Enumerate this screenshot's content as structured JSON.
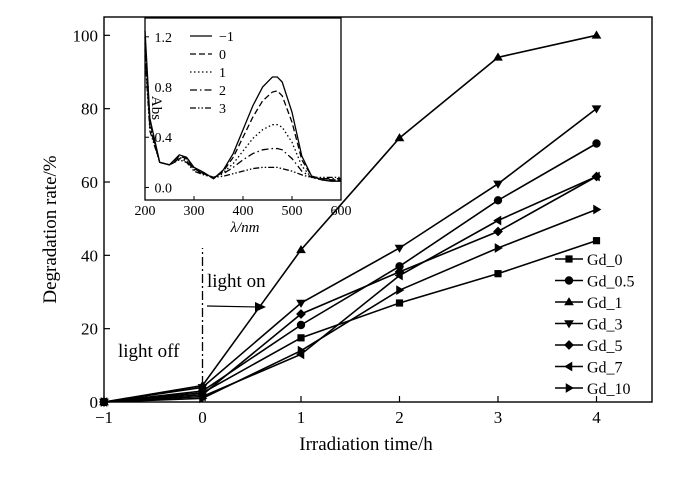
{
  "chart_data": [
    {
      "type": "line",
      "title": "",
      "xlabel": "Irradiation time/h",
      "ylabel": "Degradation rate/%",
      "xlim": [
        -1,
        4.5
      ],
      "ylim": [
        0,
        105
      ],
      "xticks": [
        -1,
        0,
        1,
        2,
        3,
        4
      ],
      "yticks": [
        0,
        20,
        40,
        60,
        80,
        100
      ],
      "grid": false,
      "legend_position": "right",
      "annotations": {
        "light_off": "light off",
        "light_on": "light on"
      },
      "x": [
        -1,
        0,
        1,
        2,
        3,
        4
      ],
      "series": [
        {
          "name": "Gd_0",
          "marker": "square",
          "values": [
            0,
            2.5,
            17.5,
            27,
            35,
            44
          ]
        },
        {
          "name": "Gd_0.5",
          "marker": "circle",
          "values": [
            0,
            3,
            21,
            37,
            55,
            70.5
          ]
        },
        {
          "name": "Gd_1",
          "marker": "triangle-up",
          "values": [
            0,
            4.5,
            41.5,
            72,
            94,
            100
          ]
        },
        {
          "name": "Gd_3",
          "marker": "triangle-down",
          "values": [
            0,
            4,
            27,
            42,
            59.5,
            80
          ]
        },
        {
          "name": "Gd_5",
          "marker": "diamond",
          "values": [
            0,
            2,
            24,
            35.5,
            46.5,
            61.5
          ]
        },
        {
          "name": "Gd_7",
          "marker": "triangle-left",
          "values": [
            0,
            1.5,
            13,
            34.5,
            49.5,
            61.5
          ]
        },
        {
          "name": "Gd_10",
          "marker": "triangle-right",
          "values": [
            0,
            1,
            14,
            30.5,
            42,
            52.5
          ]
        }
      ]
    },
    {
      "type": "line",
      "title": "",
      "xlabel": "λ/nm",
      "ylabel": "Abs",
      "xlim": [
        200,
        600
      ],
      "ylim": [
        -0.1,
        1.35
      ],
      "xticks": [
        200,
        300,
        400,
        500,
        600
      ],
      "yticks": [
        0.0,
        0.4,
        0.8,
        1.2
      ],
      "ytick_labels": [
        "0.0",
        "0.4",
        "0.8",
        "1.2"
      ],
      "grid": false,
      "legend_position": "top-left",
      "series": [
        {
          "name": "−1",
          "style": "solid",
          "x": [
            200,
            210,
            230,
            250,
            270,
            285,
            300,
            320,
            340,
            360,
            380,
            400,
            420,
            440,
            460,
            470,
            480,
            500,
            520,
            540,
            560,
            580,
            600
          ],
          "y": [
            1.25,
            0.55,
            0.2,
            0.18,
            0.26,
            0.24,
            0.16,
            0.12,
            0.07,
            0.14,
            0.27,
            0.46,
            0.65,
            0.8,
            0.88,
            0.88,
            0.84,
            0.6,
            0.25,
            0.09,
            0.06,
            0.05,
            0.05
          ]
        },
        {
          "name": "0",
          "style": "dashed",
          "x": [
            200,
            210,
            230,
            250,
            270,
            285,
            300,
            320,
            340,
            360,
            380,
            400,
            420,
            440,
            460,
            470,
            480,
            500,
            520,
            540,
            560,
            580,
            600
          ],
          "y": [
            1.2,
            0.52,
            0.2,
            0.18,
            0.25,
            0.23,
            0.15,
            0.11,
            0.07,
            0.13,
            0.24,
            0.4,
            0.56,
            0.69,
            0.76,
            0.77,
            0.73,
            0.52,
            0.22,
            0.09,
            0.07,
            0.06,
            0.06
          ]
        },
        {
          "name": "1",
          "style": "dotted",
          "x": [
            200,
            210,
            230,
            250,
            270,
            285,
            300,
            320,
            340,
            360,
            380,
            400,
            420,
            440,
            460,
            470,
            480,
            500,
            520,
            540,
            560,
            580,
            600
          ],
          "y": [
            1.15,
            0.5,
            0.2,
            0.18,
            0.24,
            0.22,
            0.15,
            0.11,
            0.08,
            0.12,
            0.19,
            0.29,
            0.39,
            0.46,
            0.5,
            0.5,
            0.48,
            0.36,
            0.17,
            0.08,
            0.06,
            0.06,
            0.06
          ]
        },
        {
          "name": "2",
          "style": "dashdot",
          "x": [
            200,
            210,
            230,
            250,
            270,
            285,
            300,
            320,
            340,
            360,
            380,
            400,
            420,
            440,
            460,
            470,
            480,
            500,
            520,
            540,
            560,
            580,
            600
          ],
          "y": [
            1.1,
            0.48,
            0.2,
            0.18,
            0.23,
            0.21,
            0.14,
            0.11,
            0.08,
            0.11,
            0.16,
            0.22,
            0.27,
            0.3,
            0.31,
            0.31,
            0.3,
            0.23,
            0.13,
            0.08,
            0.07,
            0.07,
            0.07
          ]
        },
        {
          "name": "3",
          "style": "dashdotdot",
          "x": [
            200,
            210,
            230,
            250,
            270,
            285,
            300,
            320,
            340,
            360,
            380,
            400,
            420,
            440,
            460,
            470,
            480,
            500,
            520,
            540,
            560,
            580,
            600
          ],
          "y": [
            1.05,
            0.45,
            0.2,
            0.18,
            0.22,
            0.2,
            0.13,
            0.1,
            0.08,
            0.09,
            0.11,
            0.13,
            0.15,
            0.16,
            0.16,
            0.16,
            0.15,
            0.13,
            0.1,
            0.08,
            0.08,
            0.08,
            0.08
          ]
        }
      ]
    }
  ]
}
